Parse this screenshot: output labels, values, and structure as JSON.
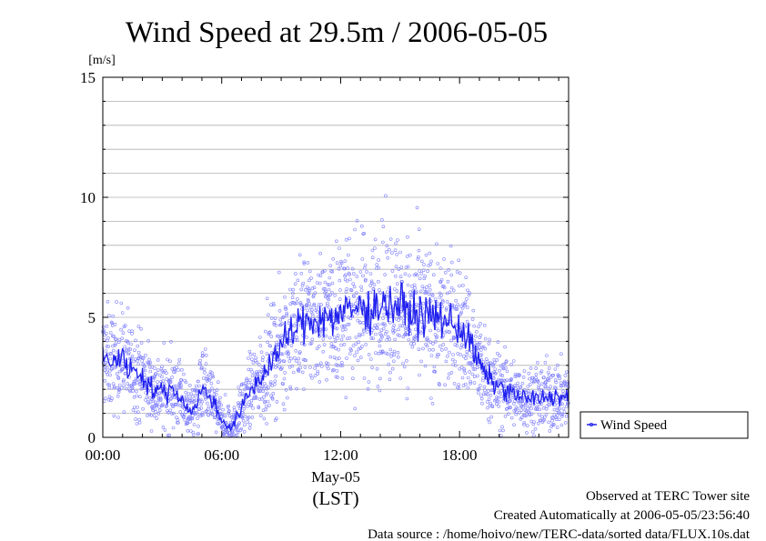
{
  "chart_data": {
    "type": "scatter",
    "title": "Wind Speed at 29.5m / 2006-05-05",
    "ylabel": "[m/s]",
    "xlabel": "May-05",
    "xlabel_unit": "(LST)",
    "ylim": [
      0,
      15
    ],
    "xlim_hours": [
      0,
      23.5
    ],
    "y_ticks": [
      "0",
      "5",
      "10",
      "15"
    ],
    "x_ticks": [
      "00:00",
      "06:00",
      "12:00",
      "18:00"
    ],
    "grid": true,
    "legend_position": "right",
    "colors": {
      "points": "#8080ff",
      "line": "#2020ee",
      "grid": "#b0b0b0"
    },
    "series": [
      {
        "name": "Wind Speed",
        "hours": [
          0,
          0.5,
          1,
          1.5,
          2,
          2.5,
          3,
          3.5,
          4,
          4.5,
          5,
          5.5,
          6,
          6.5,
          7,
          7.5,
          8,
          8.5,
          9,
          9.5,
          10,
          10.5,
          11,
          11.5,
          12,
          12.5,
          13,
          13.5,
          14,
          14.5,
          15,
          15.5,
          16,
          16.5,
          17,
          17.5,
          18,
          18.5,
          19,
          19.5,
          20,
          20.5,
          21,
          21.5,
          22,
          22.5,
          23,
          23.5
        ],
        "values": [
          3.3,
          3.2,
          3.3,
          2.8,
          2.6,
          2.0,
          1.9,
          2.0,
          1.6,
          1.0,
          2.0,
          1.6,
          0.7,
          0.4,
          1.2,
          2.0,
          2.5,
          3.2,
          3.8,
          4.3,
          4.7,
          4.9,
          5.0,
          5.0,
          5.1,
          5.3,
          5.4,
          5.3,
          5.6,
          5.5,
          5.5,
          5.2,
          5.1,
          5.0,
          5.0,
          4.8,
          4.6,
          4.0,
          3.0,
          2.4,
          2.1,
          1.9,
          1.7,
          1.6,
          1.6,
          1.7,
          1.7,
          1.7
        ]
      }
    ]
  },
  "footer": {
    "observed": "Observed at TERC Tower site",
    "created": "Created Automatically at 2006-05-05/23:56:40",
    "source": "Data source : /home/hoivo/new/TERC-data/sorted  data/FLUX.10s.dat"
  }
}
